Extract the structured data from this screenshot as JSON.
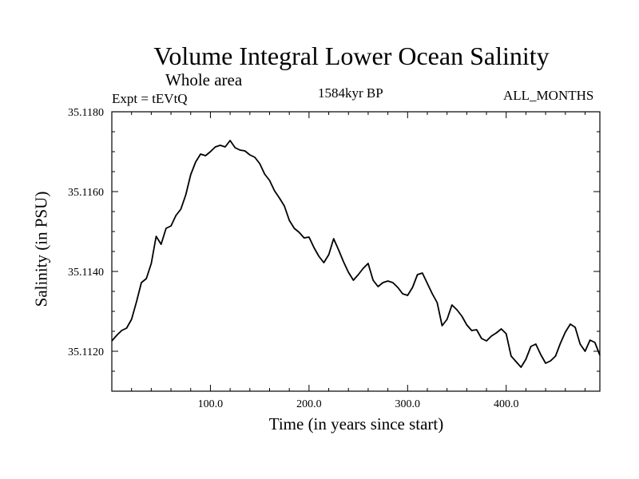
{
  "chart_data": {
    "type": "line",
    "title": "Volume Integral Lower Ocean Salinity",
    "subtitle": "Whole area",
    "annotations": {
      "left": "Expt = tEVtQ",
      "center": "1584kyr BP",
      "right": "ALL_MONTHS"
    },
    "xlabel": "Time (in years since start)",
    "ylabel": "Salinity (in PSU)",
    "xlim": [
      0,
      495
    ],
    "ylim": [
      35.111,
      35.118
    ],
    "xticks": [
      100,
      200,
      300,
      400
    ],
    "xtick_labels": [
      "100.0",
      "200.0",
      "300.0",
      "400.0"
    ],
    "yticks": [
      35.112,
      35.114,
      35.116,
      35.118
    ],
    "ytick_labels": [
      "35.1120",
      "35.1140",
      "35.1160",
      "35.1180"
    ],
    "grid": false,
    "series": [
      {
        "name": "Salinity",
        "x": [
          0,
          5,
          10,
          15,
          20,
          25,
          30,
          35,
          40,
          45,
          50,
          55,
          60,
          65,
          70,
          75,
          80,
          85,
          90,
          95,
          100,
          105,
          110,
          115,
          120,
          125,
          130,
          135,
          140,
          145,
          150,
          155,
          160,
          165,
          170,
          175,
          180,
          185,
          190,
          195,
          200,
          205,
          210,
          215,
          220,
          225,
          230,
          235,
          240,
          245,
          250,
          255,
          260,
          265,
          270,
          275,
          280,
          285,
          290,
          295,
          300,
          305,
          310,
          315,
          320,
          325,
          330,
          335,
          340,
          345,
          350,
          355,
          360,
          365,
          370,
          375,
          380,
          385,
          390,
          395,
          400,
          405,
          410,
          415,
          420,
          425,
          430,
          435,
          440,
          445,
          450,
          455,
          460,
          465,
          470,
          475,
          480,
          485,
          490,
          495
        ],
        "values": [
          35.11226,
          35.1124,
          35.11252,
          35.11258,
          35.1128,
          35.11324,
          35.11372,
          35.11382,
          35.1142,
          35.11488,
          35.11468,
          35.11508,
          35.11514,
          35.1154,
          35.11556,
          35.11592,
          35.11642,
          35.11674,
          35.11694,
          35.1169,
          35.117,
          35.11712,
          35.11716,
          35.11712,
          35.11728,
          35.1171,
          35.11704,
          35.11702,
          35.11692,
          35.11686,
          35.1167,
          35.11644,
          35.11628,
          35.11602,
          35.11584,
          35.11564,
          35.11528,
          35.11508,
          35.11498,
          35.11484,
          35.11486,
          35.1146,
          35.11438,
          35.11422,
          35.11442,
          35.11482,
          35.11454,
          35.11424,
          35.11398,
          35.11378,
          35.11392,
          35.11408,
          35.1142,
          35.11378,
          35.11362,
          35.11372,
          35.11376,
          35.11372,
          35.1136,
          35.11344,
          35.1134,
          35.1136,
          35.11392,
          35.11396,
          35.1137,
          35.11344,
          35.11322,
          35.11264,
          35.1128,
          35.11316,
          35.11304,
          35.11288,
          35.11266,
          35.11252,
          35.11254,
          35.11232,
          35.11226,
          35.11238,
          35.11246,
          35.11256,
          35.11244,
          35.11188,
          35.11174,
          35.1116,
          35.1118,
          35.11212,
          35.11218,
          35.11192,
          35.1117,
          35.11176,
          35.11188,
          35.1122,
          35.11248,
          35.11268,
          35.1126,
          35.11218,
          35.112,
          35.11228,
          35.11222,
          35.1119
        ]
      }
    ]
  }
}
